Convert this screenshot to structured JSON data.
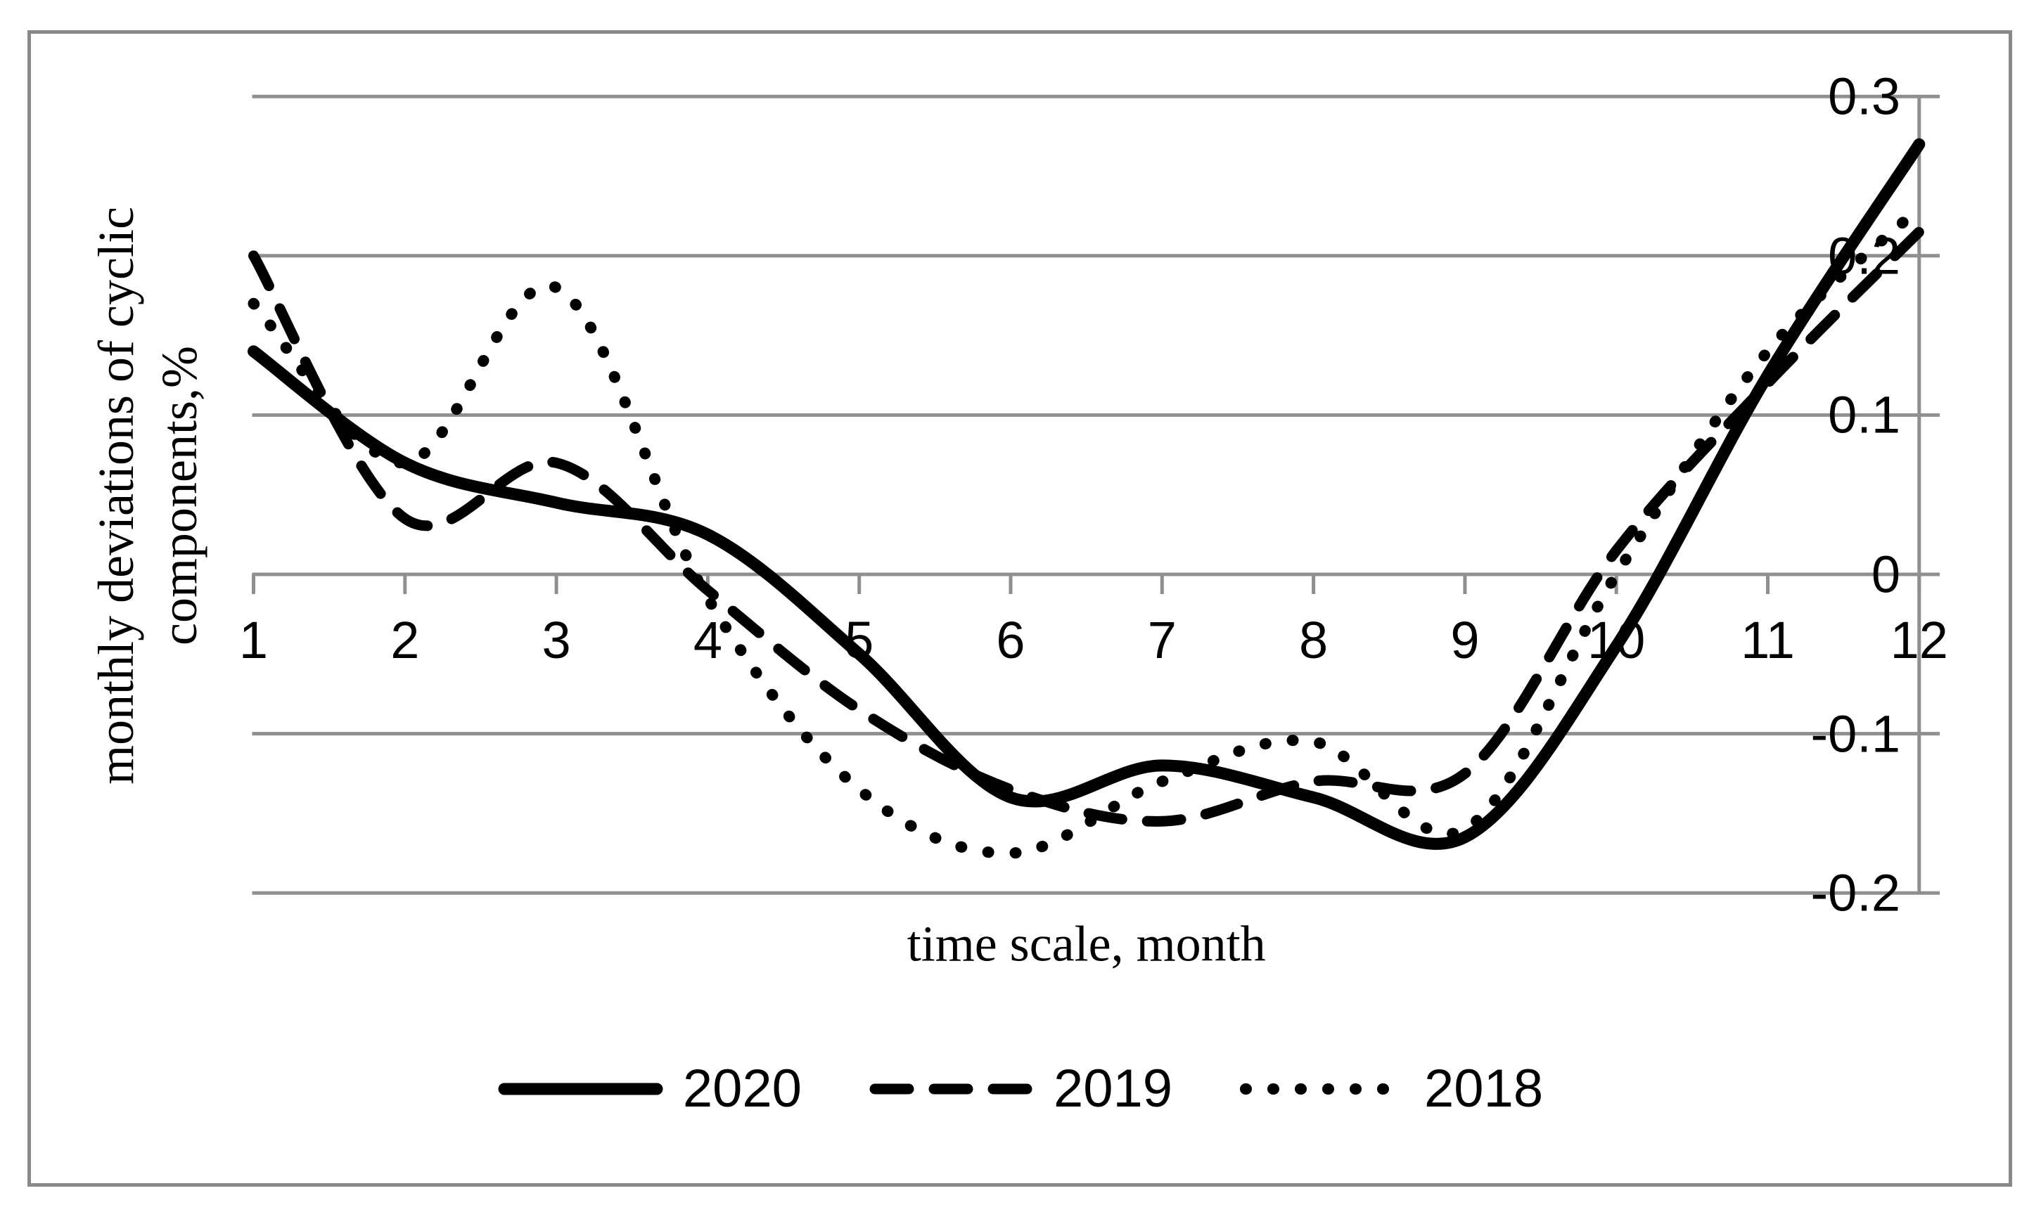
{
  "chart_data": {
    "type": "line",
    "title": "",
    "xlabel": "time scale, month",
    "ylabel": "monthly deviations of cyclic components,%",
    "ylabel_lines": [
      "monthly deviations of cyclic",
      "components,%"
    ],
    "x": [
      1,
      2,
      3,
      4,
      5,
      6,
      7,
      8,
      9,
      10,
      11,
      12
    ],
    "x_tick_labels": [
      "1",
      "2",
      "3",
      "4",
      "5",
      "6",
      "7",
      "8",
      "9",
      "10",
      "11",
      "12"
    ],
    "y_ticks": [
      0.3,
      0.2,
      0.1,
      0,
      -0.1,
      -0.2
    ],
    "y_tick_labels": [
      "0.3",
      "0.2",
      "0.1",
      "0",
      "-0.1",
      "-0.2"
    ],
    "ylim": [
      -0.2,
      0.3
    ],
    "xlim": [
      1,
      12
    ],
    "grid": "horizontal",
    "legend_position": "bottom",
    "axis_color": "#8f8f8f",
    "line_color": "#000000",
    "series": [
      {
        "name": "2020",
        "style": "solid",
        "color": "#000000",
        "values": [
          0.14,
          0.07,
          0.045,
          0.025,
          -0.05,
          -0.14,
          -0.12,
          -0.14,
          -0.165,
          -0.045,
          0.125,
          0.27
        ]
      },
      {
        "name": "2019",
        "style": "dashed",
        "color": "#000000",
        "values": [
          0.2,
          0.035,
          0.07,
          -0.01,
          -0.085,
          -0.135,
          -0.155,
          -0.13,
          -0.125,
          0.015,
          0.12,
          0.215
        ]
      },
      {
        "name": "2018",
        "style": "dotted",
        "color": "#000000",
        "values": [
          0.17,
          0.07,
          0.18,
          -0.015,
          -0.135,
          -0.175,
          -0.13,
          -0.105,
          -0.16,
          0.0,
          0.14,
          0.23
        ]
      }
    ]
  }
}
